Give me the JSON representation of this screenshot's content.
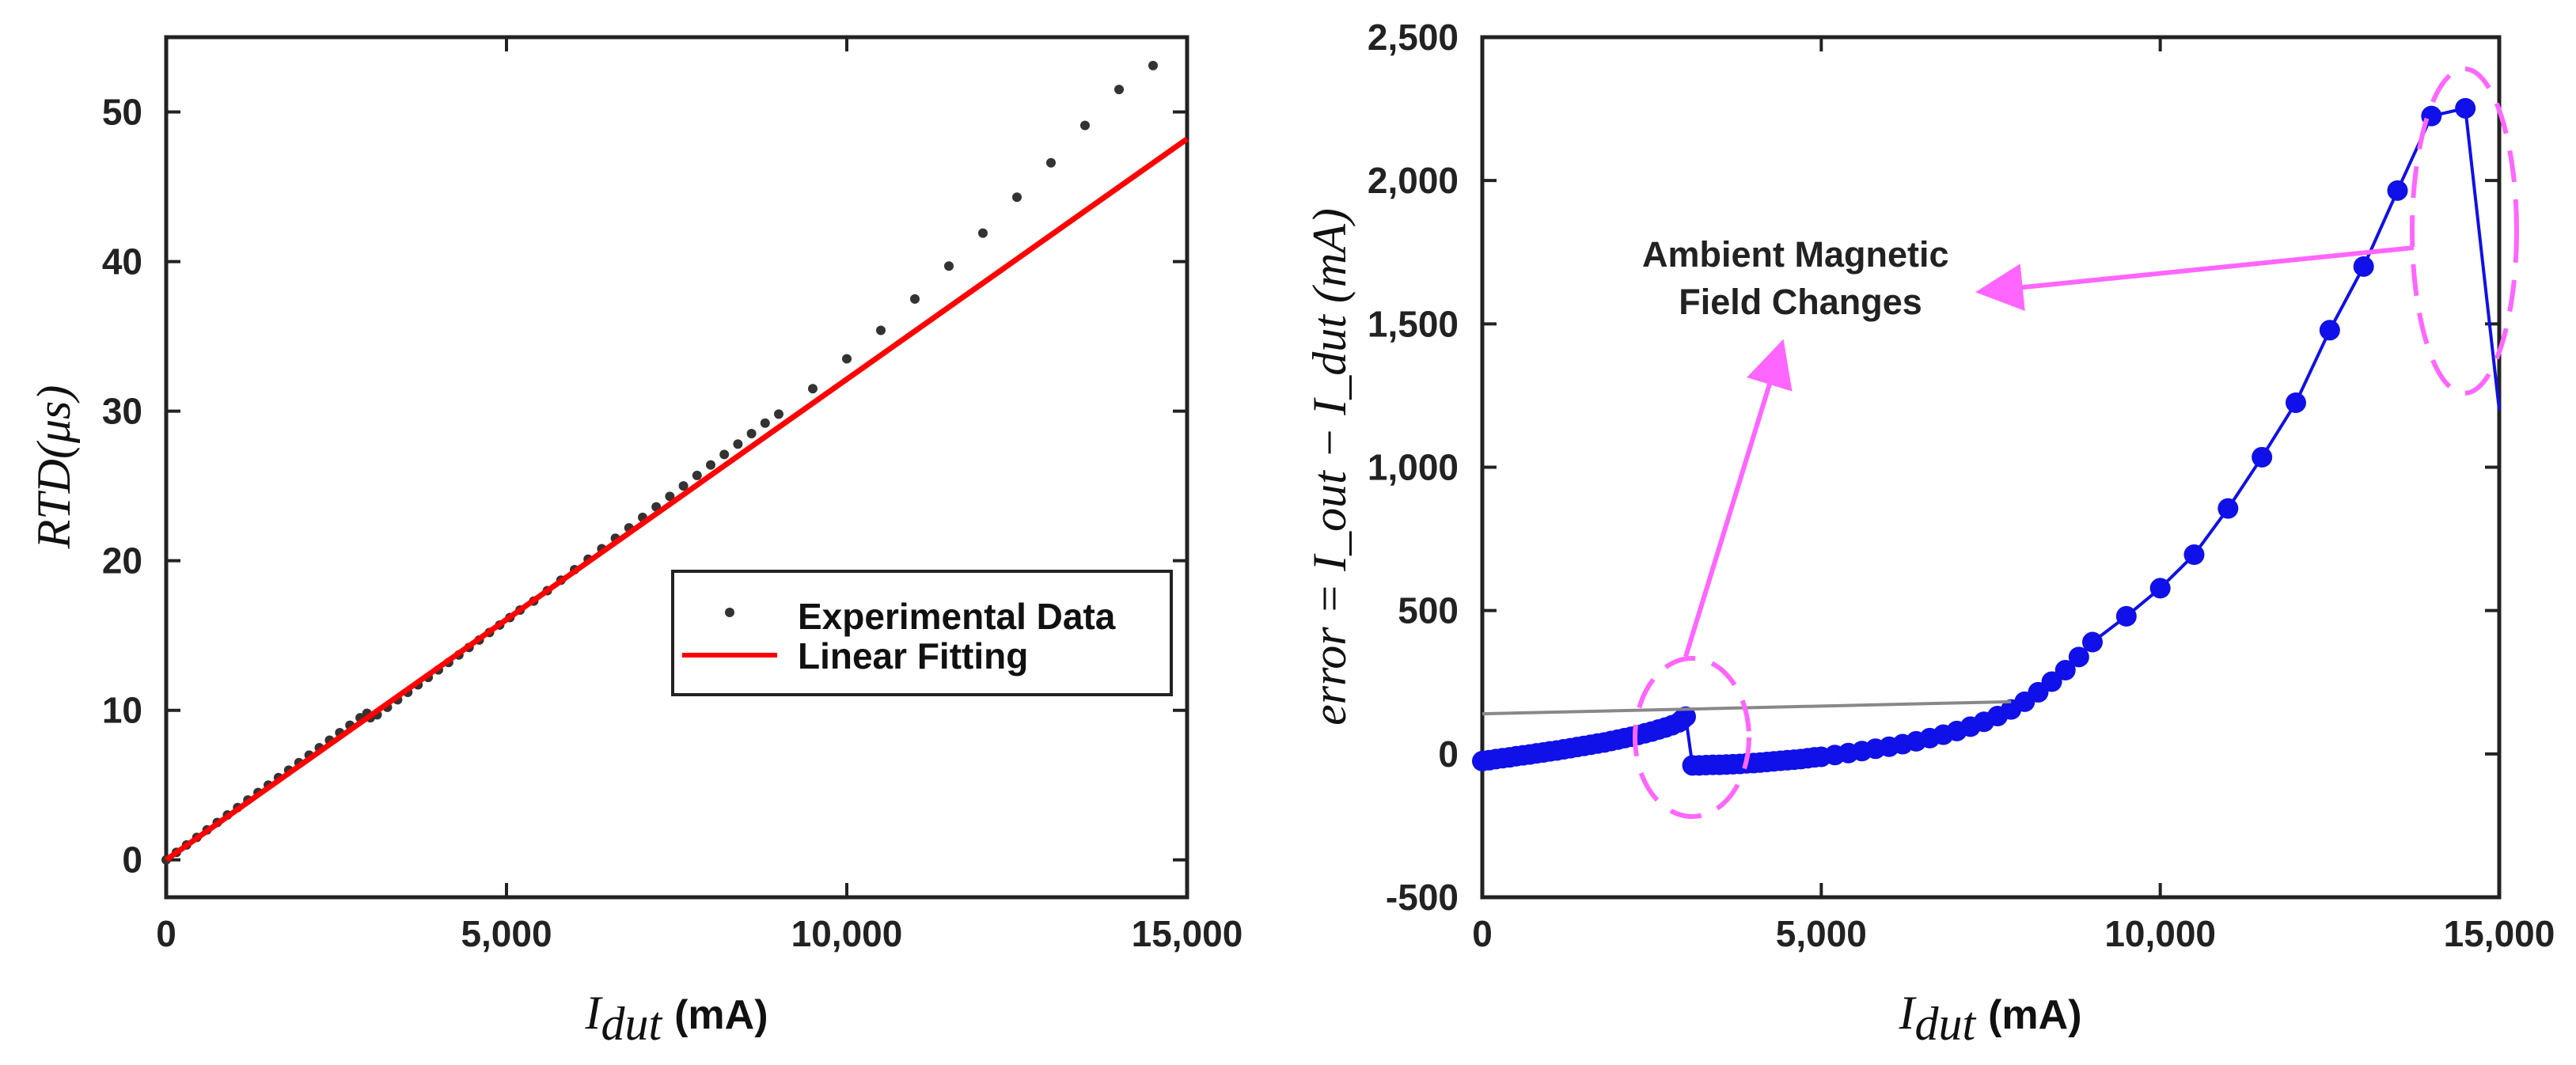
{
  "chart_data": [
    {
      "type": "scatter",
      "panel": "left",
      "xlabel_var": "I",
      "xlabel_sub": "dut",
      "xlabel_unit": "(mA)",
      "ylabel_text": "RTD(μs)",
      "xlim": [
        0,
        15000
      ],
      "ylim": [
        -2.5,
        55
      ],
      "xticks": [
        0,
        5000,
        10000,
        15000
      ],
      "xtick_labels": [
        "0",
        "5,000",
        "10,000",
        "15,000"
      ],
      "yticks": [
        0,
        10,
        20,
        30,
        40,
        50
      ],
      "ytick_labels": [
        "0",
        "10",
        "20",
        "30",
        "40",
        "50"
      ],
      "legend": {
        "position": "lower-right",
        "entries": [
          "Experimental Data",
          "Linear Fitting"
        ]
      },
      "series": [
        {
          "name": "Experimental Data",
          "kind": "points",
          "color": "#333333",
          "x": [
            0,
            150,
            300,
            450,
            600,
            750,
            900,
            1050,
            1200,
            1350,
            1500,
            1650,
            1800,
            1950,
            2100,
            2250,
            2400,
            2550,
            2700,
            2850,
            2950,
            3000,
            3100,
            3250,
            3400,
            3550,
            3700,
            3850,
            4000,
            4150,
            4300,
            4450,
            4600,
            4750,
            4900,
            5050,
            5200,
            5400,
            5600,
            5800,
            6000,
            6200,
            6400,
            6600,
            6800,
            7000,
            7200,
            7400,
            7600,
            7800,
            8000,
            8200,
            8400,
            8600,
            8800,
            9000,
            9500,
            10000,
            10500,
            11000,
            11500,
            12000,
            12500,
            13000,
            13500,
            14000,
            14500
          ],
          "y": [
            0,
            0.5,
            1.0,
            1.5,
            2.0,
            2.5,
            3.0,
            3.5,
            4.0,
            4.5,
            5.0,
            5.5,
            6.0,
            6.5,
            7.0,
            7.5,
            8.0,
            8.5,
            9.0,
            9.5,
            9.8,
            9.5,
            9.7,
            10.2,
            10.7,
            11.2,
            11.7,
            12.2,
            12.7,
            13.2,
            13.7,
            14.2,
            14.7,
            15.2,
            15.7,
            16.2,
            16.7,
            17.3,
            18.0,
            18.7,
            19.4,
            20.1,
            20.8,
            21.5,
            22.2,
            22.9,
            23.6,
            24.3,
            25.0,
            25.7,
            26.4,
            27.1,
            27.8,
            28.5,
            29.2,
            29.8,
            31.5,
            33.5,
            35.4,
            37.5,
            39.7,
            41.9,
            44.3,
            46.6,
            49.1,
            51.5,
            53.1
          ]
        },
        {
          "name": "Linear Fitting",
          "kind": "line",
          "color": "#ff0000",
          "x": [
            0,
            15000
          ],
          "y": [
            0,
            48.2
          ]
        }
      ]
    },
    {
      "type": "line",
      "panel": "right",
      "xlabel_var": "I",
      "xlabel_sub": "dut",
      "xlabel_unit": "(mA)",
      "ylabel_text": "error = I_out − I_dut (mA)",
      "xlim": [
        0,
        15000
      ],
      "ylim": [
        -500,
        2500
      ],
      "xticks": [
        0,
        5000,
        10000,
        15000
      ],
      "xtick_labels": [
        "0",
        "5,000",
        "10,000",
        "15,000"
      ],
      "yticks": [
        -500,
        0,
        500,
        1000,
        1500,
        2000,
        2500
      ],
      "ytick_labels": [
        "-500",
        "0",
        "500",
        "1,000",
        "1,500",
        "2,000",
        "2,500"
      ],
      "annotation": "Ambient Magnetic Field Changes",
      "series": [
        {
          "name": "error",
          "kind": "line+markers",
          "color": "#1010e8",
          "x": [
            0,
            100,
            200,
            300,
            400,
            500,
            600,
            700,
            800,
            900,
            1000,
            1100,
            1200,
            1300,
            1400,
            1500,
            1600,
            1700,
            1800,
            1900,
            2000,
            2100,
            2200,
            2300,
            2400,
            2500,
            2600,
            2700,
            2800,
            2900,
            2950,
            3000,
            3100,
            3200,
            3300,
            3400,
            3500,
            3600,
            3700,
            3800,
            3900,
            4000,
            4100,
            4200,
            4300,
            4400,
            4500,
            4600,
            4700,
            4800,
            4900,
            5000,
            5200,
            5400,
            5600,
            5800,
            6000,
            6200,
            6400,
            6600,
            6800,
            7000,
            7200,
            7400,
            7600,
            7800,
            8000,
            8200,
            8400,
            8600,
            8800,
            9000,
            9500,
            10000,
            10500,
            11000,
            11500,
            12000,
            12500,
            13000,
            13500,
            14000,
            14500,
            15000
          ],
          "y": [
            -25,
            -22,
            -18,
            -15,
            -12,
            -8,
            -5,
            -2,
            2,
            5,
            9,
            12,
            16,
            20,
            24,
            28,
            32,
            36,
            40,
            45,
            50,
            55,
            60,
            66,
            72,
            78,
            85,
            92,
            100,
            110,
            120,
            130,
            -40,
            -40,
            -39,
            -38,
            -38,
            -37,
            -36,
            -35,
            -33,
            -32,
            -30,
            -28,
            -26,
            -24,
            -22,
            -20,
            -18,
            -15,
            -12,
            -10,
            -4,
            3,
            10,
            18,
            25,
            34,
            44,
            55,
            67,
            80,
            95,
            112,
            132,
            155,
            182,
            215,
            252,
            292,
            338,
            390,
            480,
            578,
            695,
            856,
            1035,
            1225,
            1478,
            1700,
            1965,
            2225,
            2252,
            1200
          ]
        },
        {
          "name": "trend",
          "kind": "line",
          "color": "#888888",
          "x": [
            0,
            7800
          ],
          "y": [
            140,
            182
          ]
        }
      ]
    }
  ]
}
